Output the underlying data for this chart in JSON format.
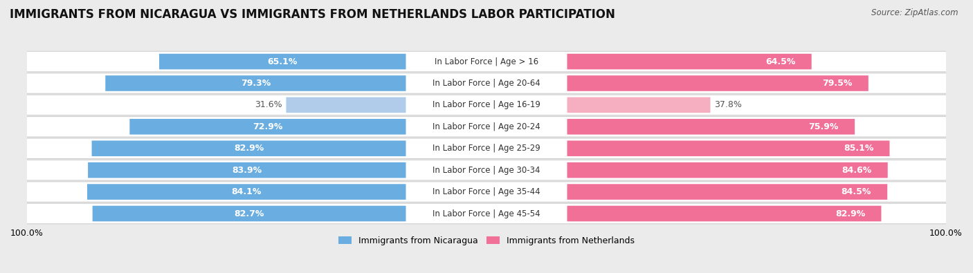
{
  "title": "IMMIGRANTS FROM NICARAGUA VS IMMIGRANTS FROM NETHERLANDS LABOR PARTICIPATION",
  "source": "Source: ZipAtlas.com",
  "categories": [
    "In Labor Force | Age > 16",
    "In Labor Force | Age 20-64",
    "In Labor Force | Age 16-19",
    "In Labor Force | Age 20-24",
    "In Labor Force | Age 25-29",
    "In Labor Force | Age 30-34",
    "In Labor Force | Age 35-44",
    "In Labor Force | Age 45-54"
  ],
  "nicaragua_values": [
    65.1,
    79.3,
    31.6,
    72.9,
    82.9,
    83.9,
    84.1,
    82.7
  ],
  "netherlands_values": [
    64.5,
    79.5,
    37.8,
    75.9,
    85.1,
    84.6,
    84.5,
    82.9
  ],
  "nicaragua_color": "#6aade0",
  "netherlands_color": "#f07098",
  "nicaragua_color_light": "#b0ccea",
  "netherlands_color_light": "#f5afc0",
  "bg_color": "#ebebeb",
  "row_bg_light": "#f5f5f5",
  "row_bg_dark": "#e8e8e8",
  "legend_nicaragua": "Immigrants from Nicaragua",
  "legend_netherlands": "Immigrants from Netherlands",
  "title_fontsize": 12,
  "label_fontsize": 9,
  "value_fontsize": 9,
  "axis_label_fontsize": 9
}
